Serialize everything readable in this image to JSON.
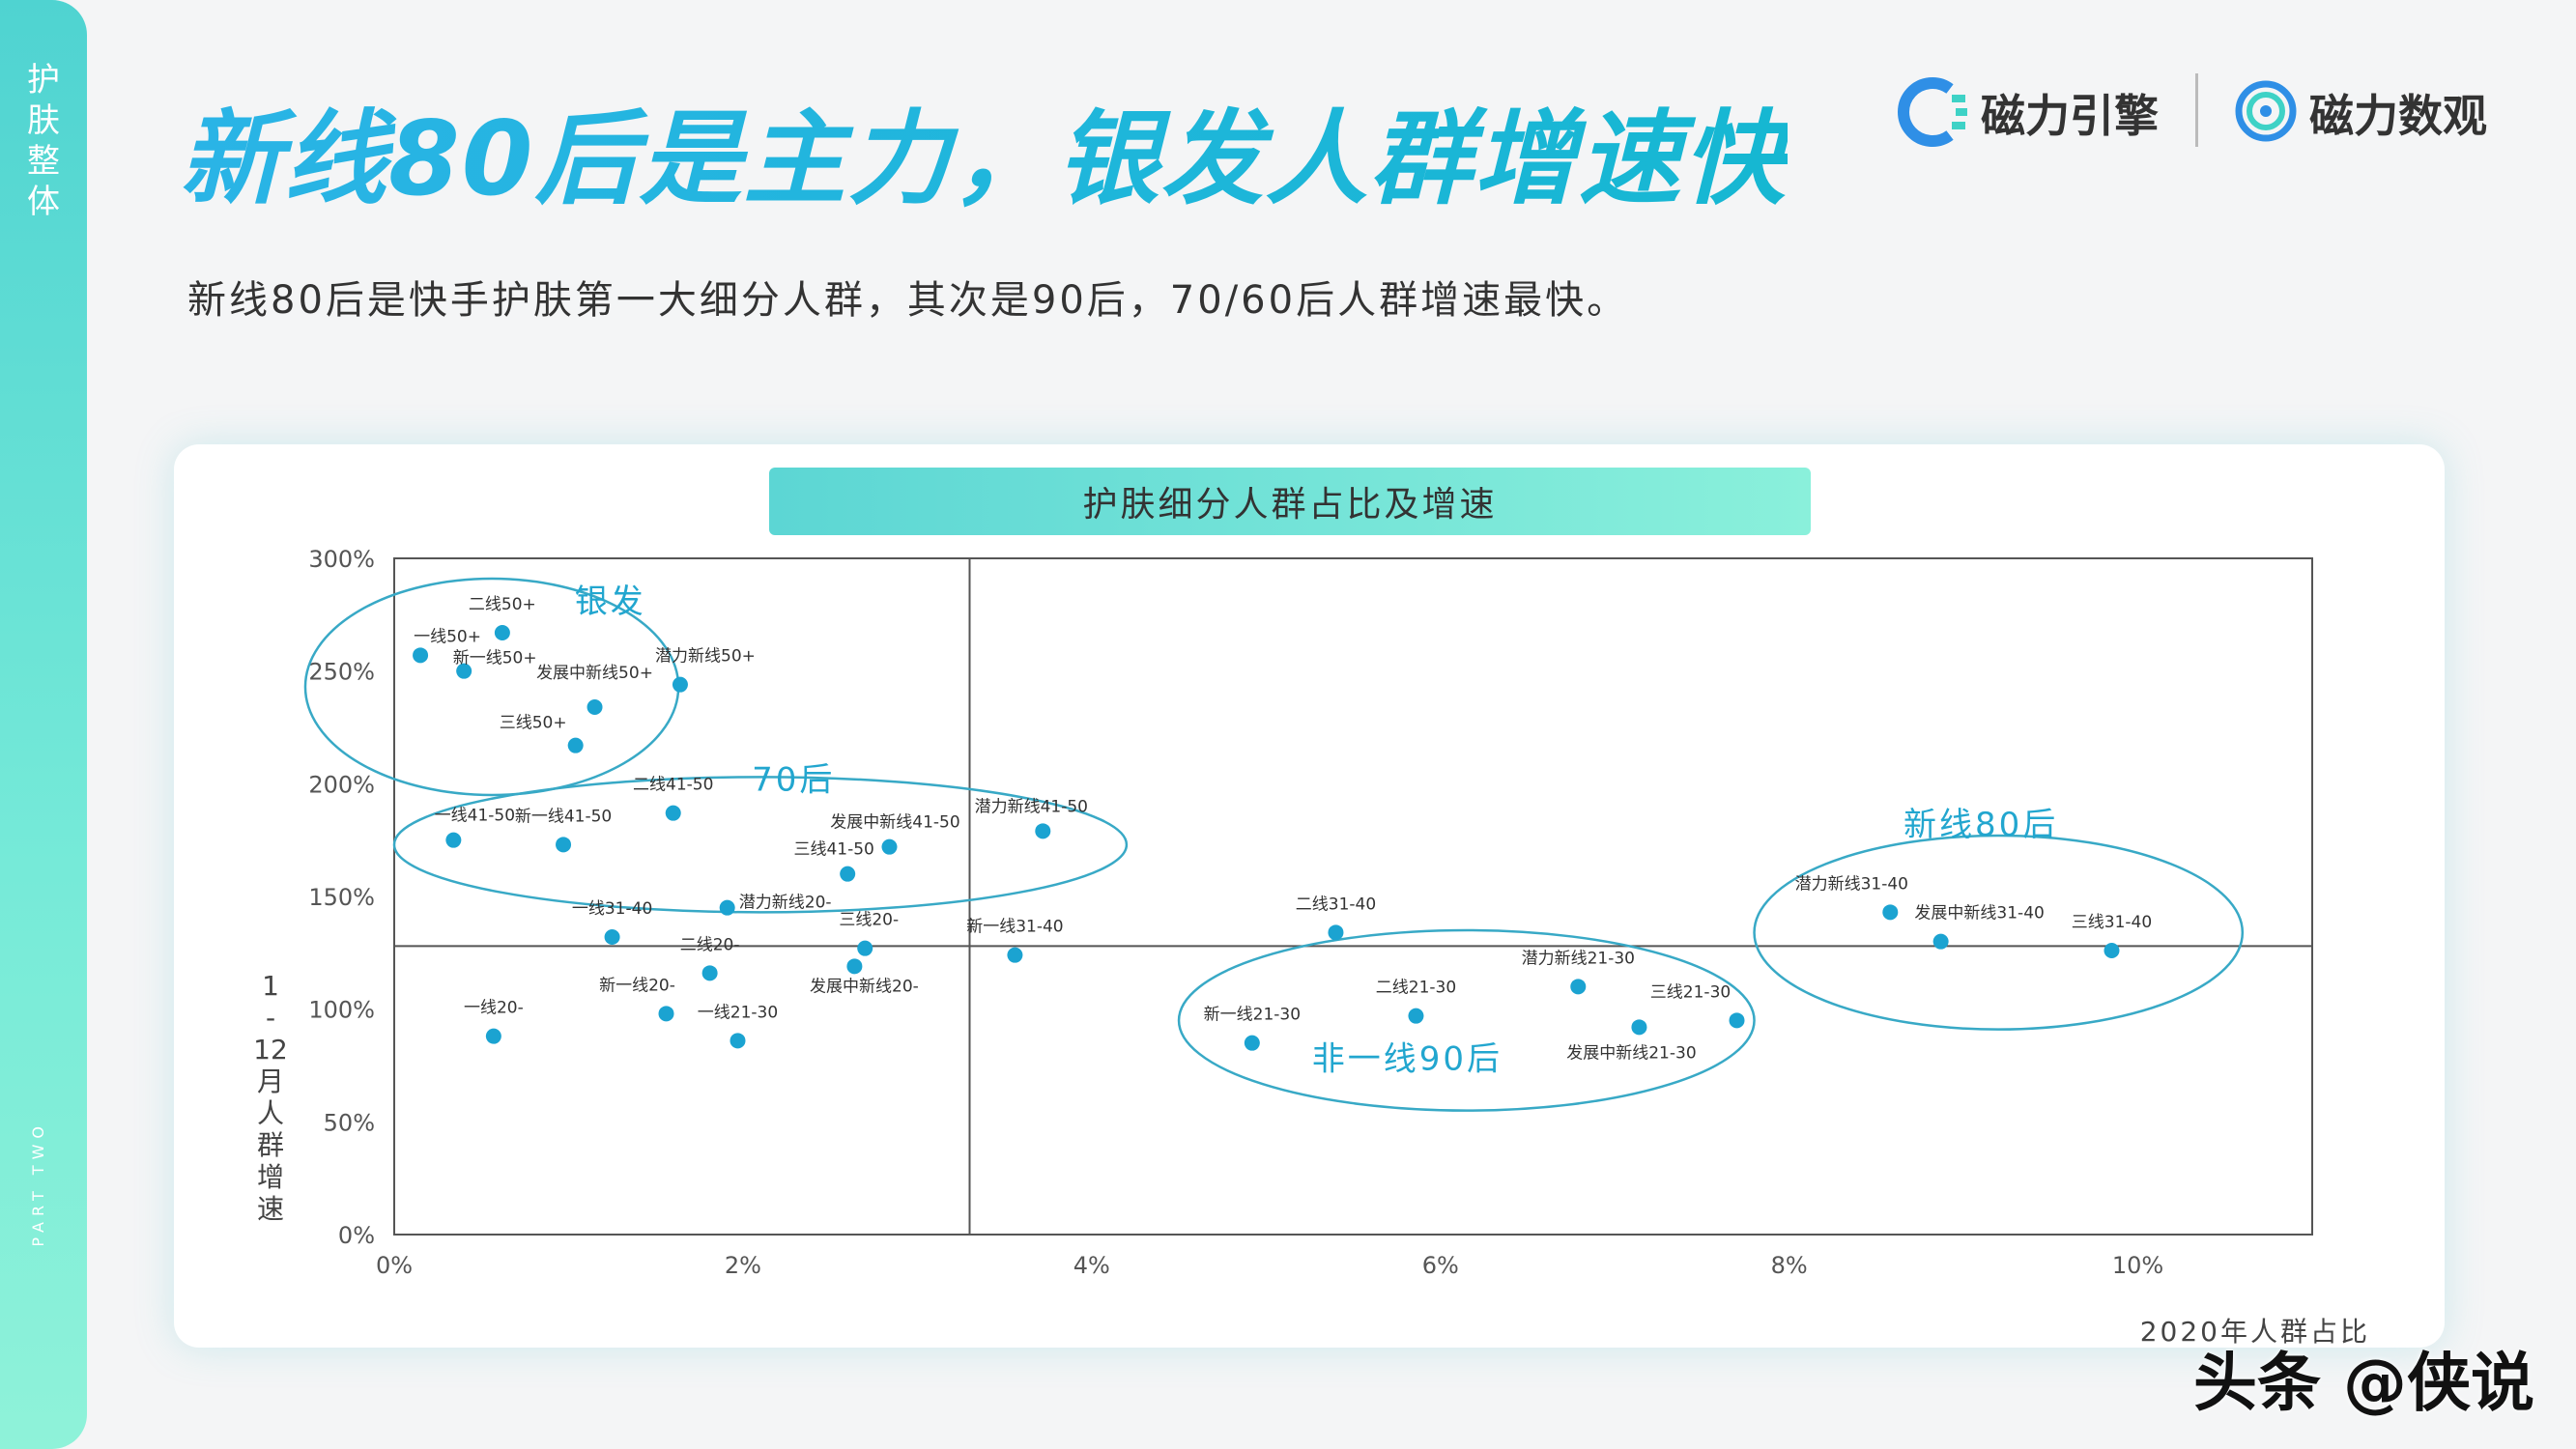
{
  "sidebar": {
    "label": "护肤整体",
    "part": "PART TWO"
  },
  "header": {
    "title": "新线80后是主力，银发人群增速快",
    "subtitle": "新线80后是快手护肤第一大细分人群，其次是90后，70/60后人群增速最快。"
  },
  "brands": {
    "brand1": "磁力引擎",
    "brand2": "磁力数观"
  },
  "colors": {
    "accent": "#25aee0",
    "point": "#1ba3d1",
    "ellipse": "#38a9c6"
  },
  "watermark": "头条 @侠说",
  "chart_data": {
    "type": "scatter",
    "title": "护肤细分人群占比及增速",
    "xlabel": "2020年人群占比",
    "ylabel": "1-12月人群增速",
    "xlim": [
      0,
      11
    ],
    "ylim": [
      0,
      300
    ],
    "x_ticks": [
      "0%",
      "2%",
      "4%",
      "6%",
      "8%",
      "10%"
    ],
    "y_ticks": [
      "0%",
      "50%",
      "100%",
      "150%",
      "200%",
      "250%",
      "300%"
    ],
    "reference_lines": {
      "x": 3.3,
      "y": 128
    },
    "points": [
      {
        "label": "一线50+",
        "x": 0.15,
        "y": 257
      },
      {
        "label": "二线50+",
        "x": 0.62,
        "y": 267
      },
      {
        "label": "新一线50+",
        "x": 0.4,
        "y": 250
      },
      {
        "label": "发展中新线50+",
        "x": 1.15,
        "y": 234
      },
      {
        "label": "潜力新线50+",
        "x": 1.64,
        "y": 244
      },
      {
        "label": "三线50+",
        "x": 1.04,
        "y": 217
      },
      {
        "label": "一线41-50",
        "x": 0.34,
        "y": 175
      },
      {
        "label": "新一线41-50",
        "x": 0.97,
        "y": 173
      },
      {
        "label": "二线41-50",
        "x": 1.6,
        "y": 187
      },
      {
        "label": "发展中新线41-50",
        "x": 2.84,
        "y": 172
      },
      {
        "label": "三线41-50",
        "x": 2.6,
        "y": 160
      },
      {
        "label": "潜力新线41-50",
        "x": 3.72,
        "y": 179
      },
      {
        "label": "一线31-40",
        "x": 1.25,
        "y": 132
      },
      {
        "label": "潜力新线20-",
        "x": 1.91,
        "y": 145
      },
      {
        "label": "二线20-",
        "x": 1.81,
        "y": 116
      },
      {
        "label": "三线20-",
        "x": 2.7,
        "y": 127
      },
      {
        "label": "发展中新线20-",
        "x": 2.64,
        "y": 119
      },
      {
        "label": "一线20-",
        "x": 0.57,
        "y": 88
      },
      {
        "label": "新一线20-",
        "x": 1.56,
        "y": 98
      },
      {
        "label": "一线21-30",
        "x": 1.97,
        "y": 86
      },
      {
        "label": "新一线31-40",
        "x": 3.56,
        "y": 124
      },
      {
        "label": "二线31-40",
        "x": 5.4,
        "y": 134
      },
      {
        "label": "新一线21-30",
        "x": 4.92,
        "y": 85
      },
      {
        "label": "二线21-30",
        "x": 5.86,
        "y": 97
      },
      {
        "label": "潜力新线21-30",
        "x": 6.79,
        "y": 110
      },
      {
        "label": "发展中新线21-30",
        "x": 7.14,
        "y": 92
      },
      {
        "label": "三线21-30",
        "x": 7.7,
        "y": 95
      },
      {
        "label": "潜力新线31-40",
        "x": 8.58,
        "y": 143
      },
      {
        "label": "发展中新线31-40",
        "x": 8.87,
        "y": 130
      },
      {
        "label": "三线31-40",
        "x": 9.85,
        "y": 126
      }
    ],
    "groups": [
      {
        "name": "银发"
      },
      {
        "name": "70后"
      },
      {
        "name": "新线80后"
      },
      {
        "name": "非一线90后"
      }
    ]
  }
}
